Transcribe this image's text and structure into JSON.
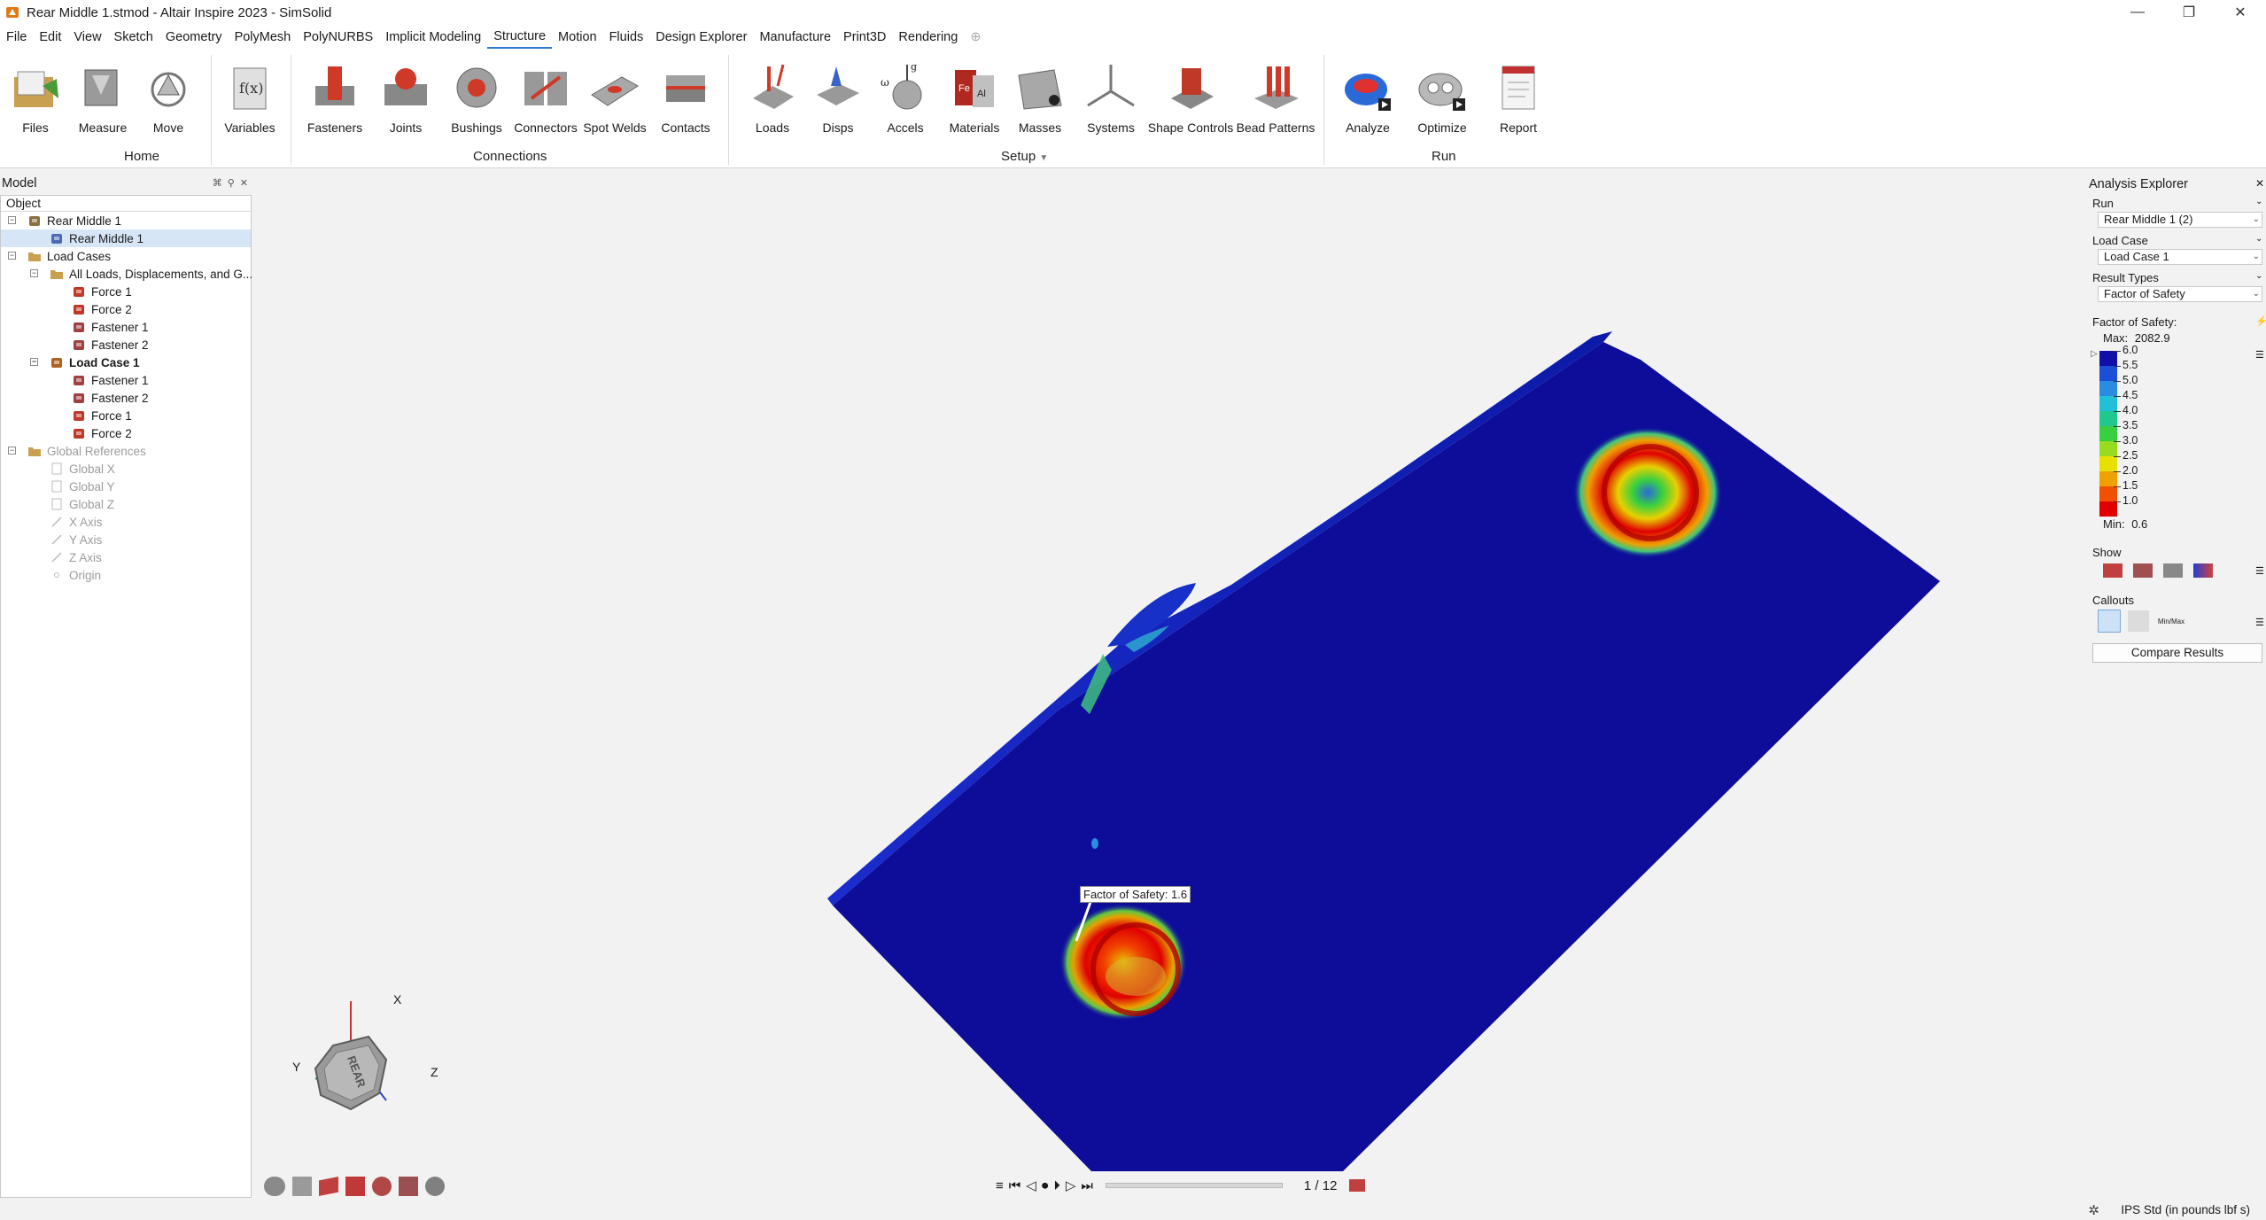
{
  "window": {
    "title": "Rear Middle 1.stmod - Altair Inspire 2023 - SimSolid",
    "minimize": "—",
    "maximize": "❐",
    "close": "✕"
  },
  "menu": [
    "File",
    "Edit",
    "View",
    "Sketch",
    "Geometry",
    "PolyMesh",
    "PolyNURBS",
    "Implicit Modeling",
    "Structure",
    "Motion",
    "Fluids",
    "Design Explorer",
    "Manufacture",
    "Print3D",
    "Rendering"
  ],
  "menu_active": "Structure",
  "ribbon": {
    "home": {
      "group": "Home",
      "tools": [
        "Files",
        "Measure",
        "Move"
      ]
    },
    "variables": {
      "tools": [
        "Variables"
      ]
    },
    "connections": {
      "group": "Connections",
      "tools": [
        "Fasteners",
        "Joints",
        "Bushings",
        "Connectors",
        "Spot Welds",
        "Contacts"
      ]
    },
    "setup": {
      "group": "Setup",
      "tools": [
        "Loads",
        "Disps",
        "Accels",
        "Materials",
        "Masses",
        "Systems",
        "Shape Controls",
        "Bead Patterns"
      ]
    },
    "run": {
      "group": "Run",
      "tools": [
        "Analyze",
        "Optimize",
        "Report"
      ]
    }
  },
  "model_browser": {
    "title": "Model",
    "column": "Object",
    "items": [
      {
        "label": "Rear Middle 1",
        "level": 0,
        "expander": "⊟",
        "icon": "assembly-icon",
        "state": "normal"
      },
      {
        "label": "Rear Middle 1",
        "level": 1,
        "expander": "",
        "icon": "part-icon",
        "state": "selected"
      },
      {
        "label": "Load Cases",
        "level": 0,
        "expander": "⊟",
        "icon": "folder-icon",
        "state": "normal"
      },
      {
        "label": "All Loads, Displacements, and G...",
        "level": 1,
        "expander": "⊟",
        "icon": "folder-icon",
        "state": "normal"
      },
      {
        "label": "Force 1",
        "level": 2,
        "expander": "",
        "icon": "force-icon",
        "state": "normal"
      },
      {
        "label": "Force 2",
        "level": 2,
        "expander": "",
        "icon": "force-icon",
        "state": "normal"
      },
      {
        "label": "Fastener 1",
        "level": 2,
        "expander": "",
        "icon": "fastener-icon",
        "state": "normal"
      },
      {
        "label": "Fastener 2",
        "level": 2,
        "expander": "",
        "icon": "fastener-icon",
        "state": "normal"
      },
      {
        "label": "Load Case 1",
        "level": 1,
        "expander": "⊟",
        "icon": "load-case-icon",
        "state": "bold"
      },
      {
        "label": "Fastener 1",
        "level": 2,
        "expander": "",
        "icon": "fastener-icon",
        "state": "normal"
      },
      {
        "label": "Fastener 2",
        "level": 2,
        "expander": "",
        "icon": "fastener-icon",
        "state": "normal"
      },
      {
        "label": "Force 1",
        "level": 2,
        "expander": "",
        "icon": "force-icon",
        "state": "normal"
      },
      {
        "label": "Force 2",
        "level": 2,
        "expander": "",
        "icon": "force-icon",
        "state": "normal"
      },
      {
        "label": "Global References",
        "level": 0,
        "expander": "⊟",
        "icon": "folder-icon",
        "state": "dim"
      },
      {
        "label": "Global X",
        "level": 1,
        "expander": "",
        "icon": "plane-icon",
        "state": "dim"
      },
      {
        "label": "Global Y",
        "level": 1,
        "expander": "",
        "icon": "plane-icon",
        "state": "dim"
      },
      {
        "label": "Global Z",
        "level": 1,
        "expander": "",
        "icon": "plane-icon",
        "state": "dim"
      },
      {
        "label": "X Axis",
        "level": 1,
        "expander": "",
        "icon": "axis-icon",
        "state": "dim"
      },
      {
        "label": "Y Axis",
        "level": 1,
        "expander": "",
        "icon": "axis-icon",
        "state": "dim"
      },
      {
        "label": "Z Axis",
        "level": 1,
        "expander": "",
        "icon": "axis-icon",
        "state": "dim"
      },
      {
        "label": "Origin",
        "level": 1,
        "expander": "",
        "icon": "origin-icon",
        "state": "dim"
      }
    ]
  },
  "viewport": {
    "callout": "Factor of Safety: 1.6",
    "triad": {
      "x": "X",
      "y": "Y",
      "z": "Z",
      "cube_face": "REAR"
    },
    "playback": {
      "frame": "1 / 12"
    }
  },
  "analysis_explorer": {
    "title": "Analysis Explorer",
    "run_label": "Run",
    "run_value": "Rear Middle 1 (2)",
    "load_case_label": "Load Case",
    "load_case_value": "Load Case 1",
    "result_types_label": "Result Types",
    "result_types_value": "Factor of Safety",
    "legend_title": "Factor of Safety:",
    "max_label": "Max:",
    "max_value": "2082.9",
    "min_label": "Min:",
    "min_value": "0.6",
    "legend_values": [
      "6.0",
      "5.5",
      "5.0",
      "4.5",
      "4.0",
      "3.5",
      "3.0",
      "2.5",
      "2.0",
      "1.5",
      "1.0"
    ],
    "legend_colors": [
      "#1010a8",
      "#1c4fd8",
      "#2a8ce0",
      "#22c0d8",
      "#20c890",
      "#38d040",
      "#98dc20",
      "#e8e000",
      "#f0a000",
      "#f05000",
      "#e00000"
    ],
    "show_label": "Show",
    "callouts_label": "Callouts",
    "minmax_label": "Min/Max",
    "compare_button": "Compare Results"
  },
  "status": {
    "units": "IPS Std (in pounds lbf s)"
  }
}
